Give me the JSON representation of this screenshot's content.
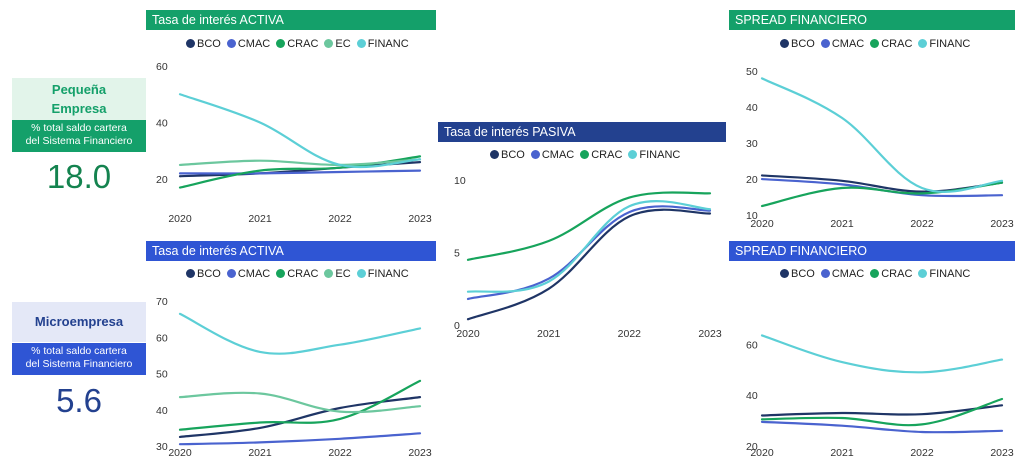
{
  "colors": {
    "BCO": "#1f3566",
    "CMAC": "#4a63cf",
    "CRAC": "#17a45c",
    "EC": "#6cc79e",
    "FINANC": "#5ccfd6",
    "green": "#14a06a",
    "blue": "#2f55d4",
    "navy": "#23418f"
  },
  "segments": [
    {
      "title": "Pequeña\nEmpresa",
      "subtitle": "% total saldo cartera\ndel Sistema Financiero",
      "value": "18.0"
    },
    {
      "title": "Microempresa",
      "subtitle": "% total saldo cartera\ndel Sistema Financiero",
      "value": "5.6"
    }
  ],
  "chart_data": [
    {
      "type": "line",
      "title": "Tasa de interés ACTIVA",
      "segment": "Pequeña Empresa",
      "legend": [
        "BCO",
        "CMAC",
        "CRAC",
        "EC",
        "FINANC"
      ],
      "x": [
        "2020",
        "2021",
        "2022",
        "2023"
      ],
      "yticks": [
        20,
        40,
        60
      ],
      "ylim": [
        14,
        60
      ],
      "series": [
        {
          "name": "BCO",
          "values": [
            21,
            22,
            24,
            26
          ]
        },
        {
          "name": "CMAC",
          "values": [
            22,
            22,
            22.5,
            23
          ]
        },
        {
          "name": "CRAC",
          "values": [
            17,
            23,
            24,
            28
          ]
        },
        {
          "name": "EC",
          "values": [
            25,
            26.5,
            25,
            27
          ]
        },
        {
          "name": "FINANC",
          "values": [
            50,
            40,
            25,
            27
          ]
        }
      ]
    },
    {
      "type": "line",
      "title": "Tasa de interés ACTIVA",
      "segment": "Microempresa",
      "legend": [
        "BCO",
        "CMAC",
        "CRAC",
        "EC",
        "FINANC"
      ],
      "x": [
        "2020",
        "2021",
        "2022",
        "2023"
      ],
      "yticks": [
        30,
        40,
        50,
        60,
        70
      ],
      "ylim": [
        30,
        72
      ],
      "series": [
        {
          "name": "BCO",
          "values": [
            32.5,
            35,
            40.5,
            43.5
          ]
        },
        {
          "name": "CMAC",
          "values": [
            30.5,
            31,
            32,
            33.5
          ]
        },
        {
          "name": "CRAC",
          "values": [
            34.5,
            36.5,
            37.5,
            48
          ]
        },
        {
          "name": "EC",
          "values": [
            43.5,
            44.5,
            39.5,
            41
          ]
        },
        {
          "name": "FINANC",
          "values": [
            66.5,
            56,
            58,
            62.5
          ]
        }
      ]
    },
    {
      "type": "line",
      "title": "Tasa de interés PASIVA",
      "legend": [
        "BCO",
        "CMAC",
        "CRAC",
        "FINANC"
      ],
      "x": [
        "2020",
        "2021",
        "2022",
        "2023"
      ],
      "yticks": [
        0,
        5,
        10
      ],
      "ylim": [
        0,
        10.5
      ],
      "series": [
        {
          "name": "BCO",
          "values": [
            0.4,
            2.5,
            7.5,
            7.7
          ]
        },
        {
          "name": "CMAC",
          "values": [
            1.8,
            3.2,
            7.8,
            7.9
          ]
        },
        {
          "name": "CRAC",
          "values": [
            4.5,
            5.8,
            8.8,
            9.1
          ]
        },
        {
          "name": "FINANC",
          "values": [
            2.3,
            3,
            8.2,
            8
          ]
        }
      ]
    },
    {
      "type": "line",
      "title": "SPREAD FINANCIERO",
      "segment": "Pequeña Empresa",
      "legend": [
        "BCO",
        "CMAC",
        "CRAC",
        "FINANC"
      ],
      "x": [
        "2020",
        "2021",
        "2022",
        "2023"
      ],
      "yticks": [
        10,
        20,
        30,
        40,
        50
      ],
      "ylim": [
        10,
        52
      ],
      "series": [
        {
          "name": "BCO",
          "values": [
            21,
            19.5,
            16.5,
            19
          ]
        },
        {
          "name": "CMAC",
          "values": [
            20,
            18.5,
            15.5,
            15.5
          ]
        },
        {
          "name": "CRAC",
          "values": [
            12.5,
            17.5,
            16,
            19
          ]
        },
        {
          "name": "FINANC",
          "values": [
            48,
            37,
            17.5,
            19.5
          ]
        }
      ]
    },
    {
      "type": "line",
      "title": "SPREAD FINANCIERO",
      "segment": "Microempresa",
      "legend": [
        "BCO",
        "CMAC",
        "CRAC",
        "FINANC"
      ],
      "x": [
        "2020",
        "2021",
        "2022",
        "2023"
      ],
      "yticks": [
        20,
        40,
        60
      ],
      "ylim": [
        20,
        68
      ],
      "series": [
        {
          "name": "BCO",
          "values": [
            32,
            33,
            32.5,
            36
          ]
        },
        {
          "name": "CMAC",
          "values": [
            29.5,
            28,
            25.5,
            26
          ]
        },
        {
          "name": "CRAC",
          "values": [
            30.5,
            31,
            28.5,
            38.5
          ]
        },
        {
          "name": "FINANC",
          "values": [
            63.5,
            53,
            49,
            54
          ]
        }
      ]
    }
  ]
}
